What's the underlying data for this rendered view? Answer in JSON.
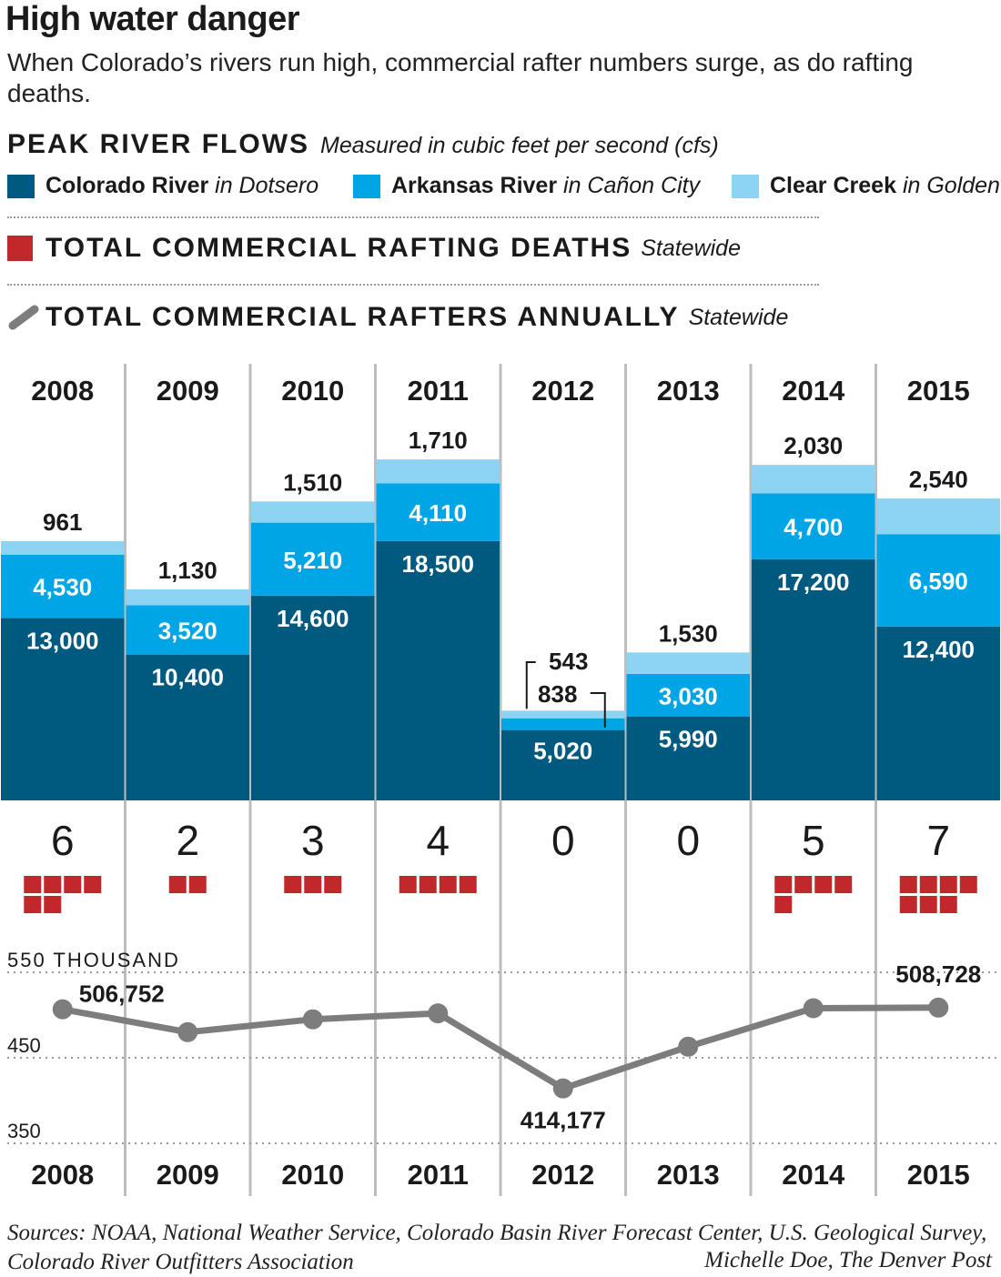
{
  "title": "High water danger",
  "subtitle": "When Colorado’s rivers run high, commercial rafter numbers surge, as do rafting deaths.",
  "flows_heading": "PEAK RIVER FLOWS",
  "flows_note": "Measured in cubic feet per second (cfs)",
  "legend": [
    {
      "name": "Colorado River",
      "place": "in Dotsero",
      "color": "#005a80"
    },
    {
      "name": "Arkansas River",
      "place": "in Cañon City",
      "color": "#00a5e6"
    },
    {
      "name": "Clear Creek",
      "place": "in Golden",
      "color": "#8dd4f4"
    }
  ],
  "deaths_heading": "TOTAL COMMERCIAL RAFTING DEATHS",
  "deaths_note": "Statewide",
  "deaths_color": "#c0282b",
  "rafters_heading": "TOTAL COMMERCIAL RAFTERS ANNUALLY",
  "rafters_note": "Statewide",
  "rafters_color": "#7d7d7d",
  "chart_data": [
    {
      "type": "bar",
      "stacked": true,
      "categories": [
        "2008",
        "2009",
        "2010",
        "2011",
        "2012",
        "2013",
        "2014",
        "2015"
      ],
      "series": [
        {
          "name": "Colorado River",
          "values": [
            13000,
            10400,
            14600,
            18500,
            5020,
            5990,
            17200,
            12400
          ],
          "labels": [
            "13,000",
            "10,400",
            "14,600",
            "18,500",
            "5,020",
            "5,990",
            "17,200",
            "12,400"
          ]
        },
        {
          "name": "Arkansas River",
          "values": [
            4530,
            3520,
            5210,
            4110,
            838,
            3030,
            4700,
            6590
          ],
          "labels": [
            "4,530",
            "3,520",
            "5,210",
            "4,110",
            "838",
            "3,030",
            "4,700",
            "6,590"
          ]
        },
        {
          "name": "Clear Creek",
          "values": [
            961,
            1130,
            1510,
            1710,
            543,
            1530,
            2030,
            2540
          ],
          "labels": [
            "961",
            "1,130",
            "1,510",
            "1,710",
            "543",
            "1,530",
            "2,030",
            "2,540"
          ]
        }
      ]
    },
    {
      "type": "table",
      "categories": [
        "2008",
        "2009",
        "2010",
        "2011",
        "2012",
        "2013",
        "2014",
        "2015"
      ],
      "values": [
        6,
        2,
        3,
        4,
        0,
        0,
        5,
        7
      ]
    },
    {
      "type": "line",
      "categories": [
        "2008",
        "2009",
        "2010",
        "2011",
        "2012",
        "2013",
        "2014",
        "2015"
      ],
      "values": [
        506752,
        480000,
        495000,
        502000,
        414177,
        463000,
        508000,
        508728
      ],
      "point_labels": [
        "506,752",
        "",
        "",
        "",
        "414,177",
        "",
        "",
        "508,728"
      ],
      "yticks": [
        "350",
        "450",
        "550 THOUSAND"
      ],
      "ylim": [
        350000,
        550000
      ]
    }
  ],
  "sources": "Sources: NOAA, National Weather Service, Colorado Basin River Forecast Center, U.S. Geological Survey, Colorado River Outfitters Association",
  "credit": "Michelle Doe, The Denver Post"
}
